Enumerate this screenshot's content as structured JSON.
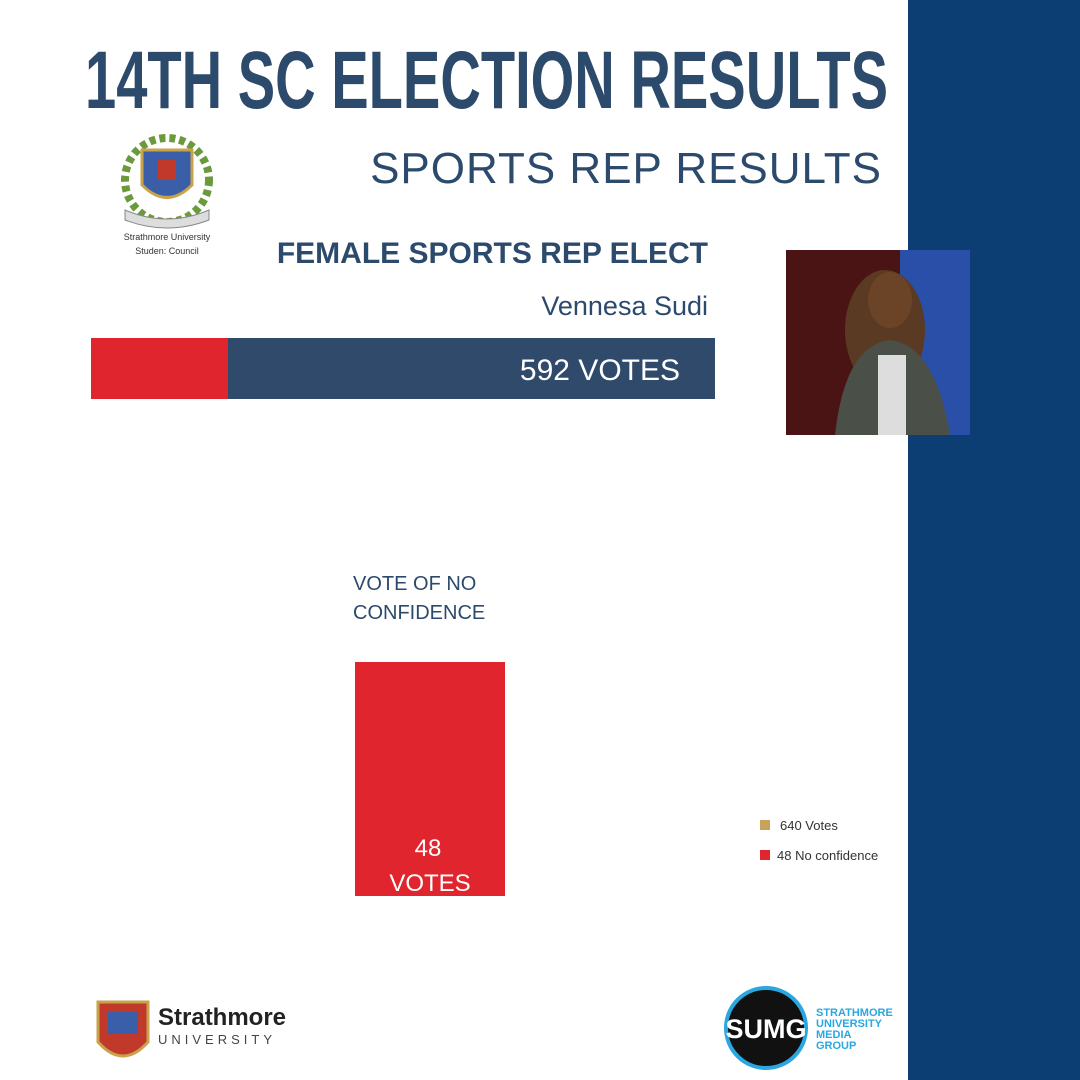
{
  "header": {
    "title": "14TH SC ELECTION RESULTS",
    "subtitle": "SPORTS REP RESULTS"
  },
  "logo_council": {
    "line1": "Strathmore University",
    "line2": "Studen: Council"
  },
  "winner": {
    "role": "FEMALE SPORTS REP ELECT",
    "name": "Vennesa Sudi",
    "votes_label": "592 VOTES"
  },
  "no_confidence": {
    "label_lines": [
      "VOTE OF NO",
      "CONFIDENCE"
    ],
    "votes_lines": [
      "48",
      "VOTES"
    ]
  },
  "legend": [
    "640 Votes",
    "48 No confidence"
  ],
  "footer": {
    "university": {
      "name": "Strathmore",
      "sub": "UNIVERSITY"
    },
    "media_group": {
      "badge": "SUMG",
      "lines": [
        "STRATHMORE",
        "UNIVERSITY",
        "MEDIA",
        "GROUP"
      ]
    }
  }
}
